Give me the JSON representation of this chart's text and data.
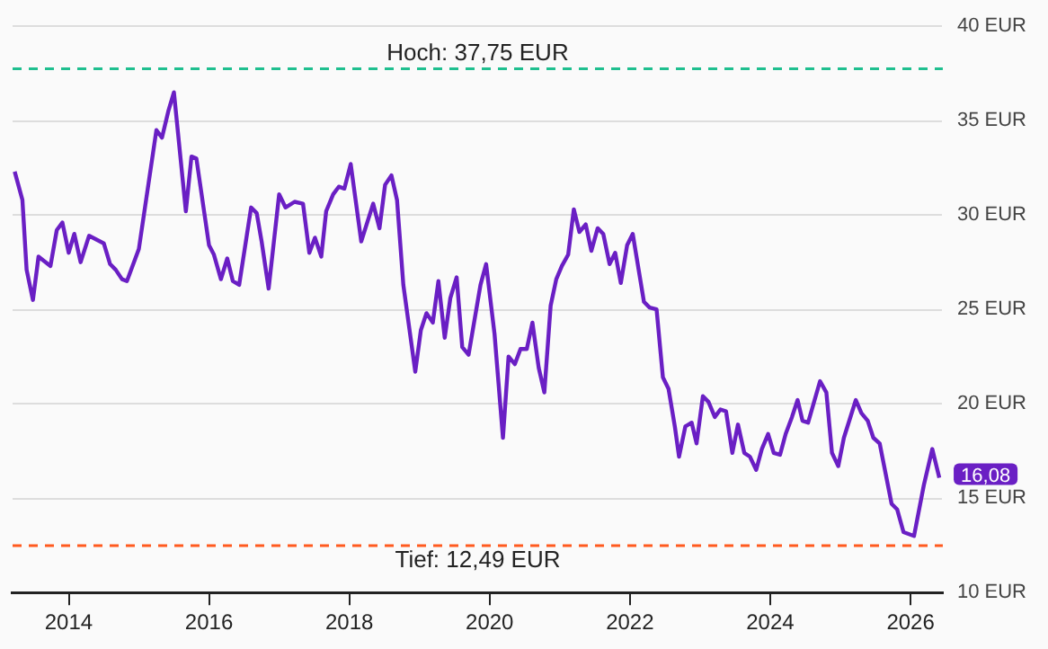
{
  "chart_data": {
    "type": "line",
    "x": [
      2013.23,
      2013.34,
      2013.4,
      2013.49,
      2013.57,
      2013.74,
      2013.83,
      2013.91,
      2014.0,
      2014.08,
      2014.17,
      2014.29,
      2014.5,
      2014.59,
      2014.67,
      2014.76,
      2014.83,
      2015.0,
      2015.25,
      2015.33,
      2015.42,
      2015.5,
      2015.67,
      2015.75,
      2015.82,
      2016.0,
      2016.07,
      2016.17,
      2016.26,
      2016.34,
      2016.43,
      2016.6,
      2016.68,
      2016.75,
      2016.85,
      2017.0,
      2017.09,
      2017.22,
      2017.34,
      2017.43,
      2017.51,
      2017.6,
      2017.67,
      2017.77,
      2017.85,
      2017.93,
      2018.02,
      2018.17,
      2018.34,
      2018.43,
      2018.51,
      2018.6,
      2018.68,
      2018.77,
      2018.94,
      2019.02,
      2019.1,
      2019.19,
      2019.27,
      2019.36,
      2019.44,
      2019.53,
      2019.61,
      2019.7,
      2019.87,
      2019.95,
      2020.07,
      2020.19,
      2020.27,
      2020.36,
      2020.44,
      2020.53,
      2020.61,
      2020.7,
      2020.78,
      2020.87,
      2020.95,
      2021.03,
      2021.12,
      2021.2,
      2021.28,
      2021.37,
      2021.45,
      2021.54,
      2021.62,
      2021.71,
      2021.79,
      2021.87,
      2021.96,
      2022.04,
      2022.2,
      2022.28,
      2022.38,
      2022.47,
      2022.55,
      2022.64,
      2022.7,
      2022.79,
      2022.88,
      2022.95,
      2023.04,
      2023.12,
      2023.21,
      2023.29,
      2023.37,
      2023.46,
      2023.54,
      2023.63,
      2023.71,
      2023.8,
      2023.88,
      2023.97,
      2024.05,
      2024.14,
      2024.22,
      2024.31,
      2024.39,
      2024.46,
      2024.54,
      2024.71,
      2024.8,
      2024.88,
      2024.97,
      2025.05,
      2025.22,
      2025.3,
      2025.39,
      2025.47,
      2025.56,
      2025.73,
      2025.81,
      2025.9,
      2026.05,
      2026.19,
      2026.31,
      2026.41
    ],
    "series": [
      {
        "color": "#6a1fc4",
        "values": [
          32.3,
          30.8,
          27.1,
          25.5,
          27.8,
          27.3,
          29.2,
          29.6,
          28.0,
          29.0,
          27.5,
          28.9,
          28.5,
          27.4,
          27.1,
          26.6,
          26.5,
          28.2,
          34.5,
          34.1,
          35.5,
          36.5,
          30.2,
          33.1,
          33.0,
          28.4,
          27.9,
          26.6,
          27.7,
          26.5,
          26.3,
          30.4,
          30.1,
          28.6,
          26.1,
          31.1,
          30.4,
          30.7,
          30.6,
          28.0,
          28.8,
          27.8,
          30.2,
          31.1,
          31.5,
          31.4,
          32.7,
          28.6,
          30.6,
          29.3,
          31.6,
          32.1,
          30.8,
          26.3,
          21.7,
          23.9,
          24.8,
          24.3,
          26.5,
          23.5,
          25.6,
          26.7,
          23.0,
          22.6,
          26.3,
          27.4,
          23.7,
          18.2,
          22.5,
          22.1,
          22.9,
          22.9,
          24.3,
          21.9,
          20.6,
          25.2,
          26.6,
          27.3,
          27.9,
          30.3,
          29.1,
          29.5,
          28.1,
          29.3,
          29.0,
          27.4,
          28.0,
          26.4,
          28.4,
          29.0,
          25.4,
          25.1,
          25.0,
          21.4,
          20.8,
          18.8,
          17.2,
          18.8,
          19.0,
          17.9,
          20.4,
          20.1,
          19.3,
          19.7,
          19.6,
          17.4,
          18.9,
          17.4,
          17.2,
          16.5,
          17.6,
          18.4,
          17.4,
          17.3,
          18.4,
          19.3,
          20.2,
          19.1,
          19.0,
          21.2,
          20.6,
          17.4,
          16.7,
          18.2,
          20.2,
          19.5,
          19.1,
          18.2,
          17.9,
          14.7,
          14.4,
          13.2,
          13.0,
          15.7,
          17.6,
          16.08
        ]
      }
    ],
    "xlim": [
      2013.2,
      2026.46
    ],
    "xticks": [
      2014,
      2016,
      2018,
      2020,
      2022,
      2024,
      2026
    ],
    "ylim": [
      10,
      40
    ],
    "yticks": [
      {
        "value": 10,
        "label": "10 EUR"
      },
      {
        "value": 15,
        "label": "15 EUR"
      },
      {
        "value": 20,
        "label": "20 EUR"
      },
      {
        "value": 25,
        "label": "25 EUR"
      },
      {
        "value": 30,
        "label": "30 EUR"
      },
      {
        "value": 35,
        "label": "35 EUR"
      },
      {
        "value": 40,
        "label": "40 EUR"
      }
    ],
    "grid": "y",
    "legend": false,
    "marker": "none",
    "line_style": "solid",
    "ref_lines": [
      {
        "axis": "y",
        "value": 37.75,
        "label": "Hoch: 37,75 EUR",
        "color": "#1fbf8f",
        "line_style": "dashed"
      },
      {
        "axis": "y",
        "value": 12.49,
        "label": "Tief: 12,49 EUR",
        "color": "#ff5a1f",
        "line_style": "dashed"
      }
    ],
    "annotations": [
      {
        "text": "16,08",
        "x": 2026.41,
        "y": 16.08
      }
    ]
  }
}
